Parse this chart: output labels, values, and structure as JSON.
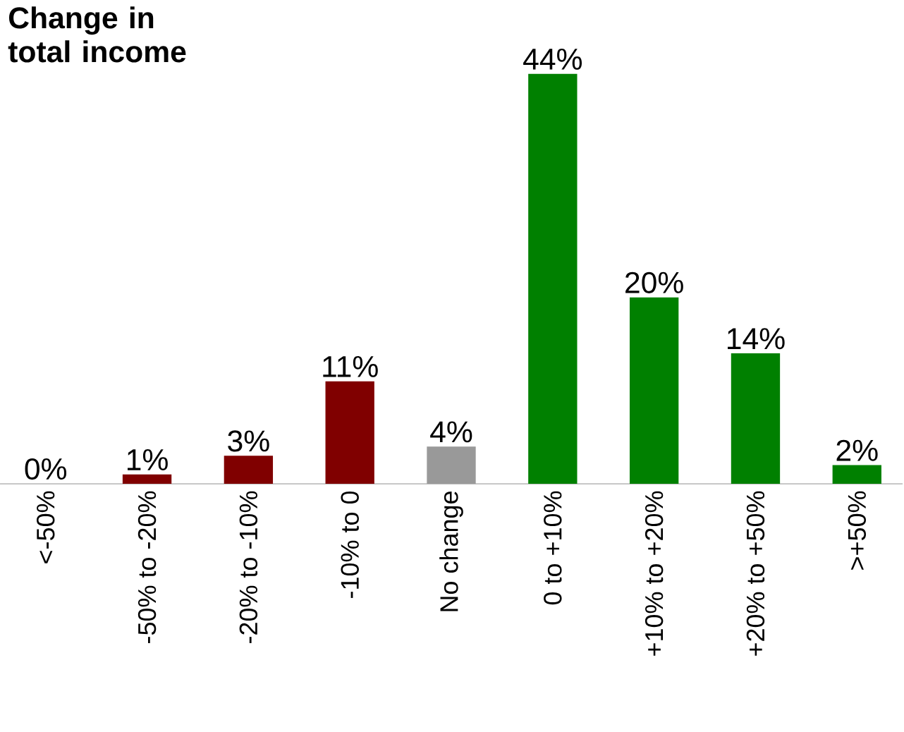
{
  "chart_data": {
    "type": "bar",
    "title": "Change in total income",
    "categories": [
      "<-50%",
      "-50% to -20%",
      "-20% to -10%",
      "-10% to 0",
      "No change",
      "0 to +10%",
      "+10% to +20%",
      "+20% to +50%",
      ">+50%"
    ],
    "values": [
      0,
      1,
      3,
      11,
      4,
      44,
      20,
      14,
      2
    ],
    "colors": [
      "#800000",
      "#800000",
      "#800000",
      "#800000",
      "#999999",
      "#008000",
      "#008000",
      "#008000",
      "#008000"
    ],
    "value_labels": [
      "0%",
      "1%",
      "3%",
      "11%",
      "4%",
      "44%",
      "20%",
      "14%",
      "2%"
    ]
  }
}
